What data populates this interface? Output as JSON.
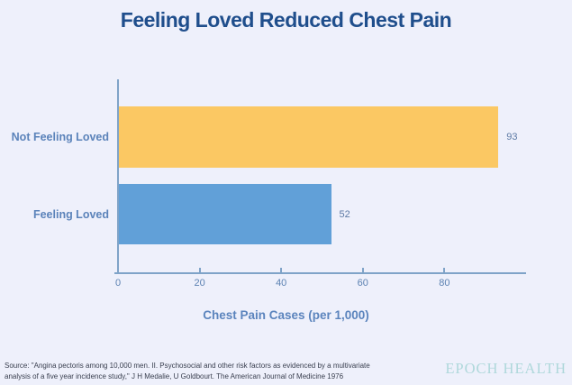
{
  "chart_data": {
    "type": "bar",
    "orientation": "horizontal",
    "title": "Feeling Loved Reduced Chest Pain",
    "categories": [
      "Not Feeling Loved",
      "Feeling Loved"
    ],
    "values": [
      93,
      52
    ],
    "bar_colors": [
      "#FBC863",
      "#61A0D8"
    ],
    "value_labels": [
      "93",
      "52"
    ],
    "xlabel": "Chest Pain Cases (per 1,000)",
    "ylabel": "",
    "xlim": [
      0,
      100
    ],
    "xticks": [
      0,
      20,
      40,
      60,
      80
    ],
    "grid": false,
    "legend": false
  },
  "colors": {
    "background": "#EEF0FB",
    "title": "#1F4E8C",
    "axis": "#7FA3C8",
    "category_label": "#5B83BA",
    "value_label": "#5D7AA5",
    "tick_label": "#5C82B2",
    "axis_title": "#5B84BD",
    "source_text": "#383E4E",
    "brand": "#AFD8DB",
    "bar_not_feeling_loved": "#FBC863",
    "bar_feeling_loved": "#61A0D8"
  },
  "footer": {
    "source_line1": "Source: \"Angina pectoris among 10,000 men. II. Psychosocial and other risk factors as evidenced by a multivariate",
    "source_line2": "analysis of a five year incidence study,\" J H Medalie, U Goldbourt. The American Journal of Medicine 1976",
    "brand": "EPOCH HEALTH"
  }
}
